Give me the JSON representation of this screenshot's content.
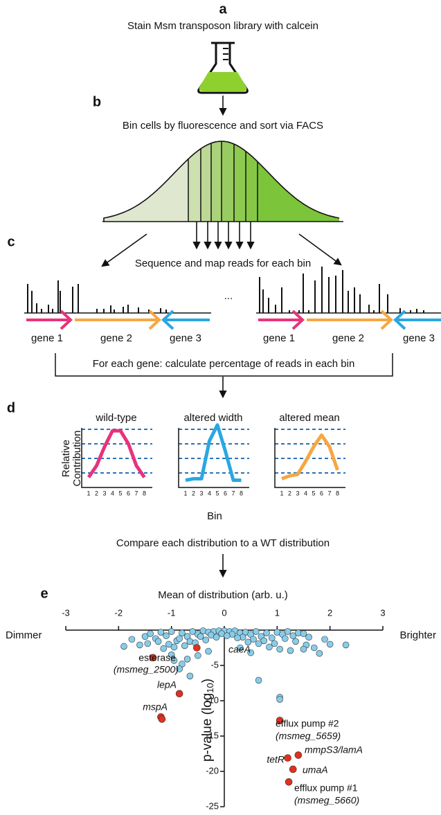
{
  "panels": {
    "a": {
      "label": "a",
      "caption": "Stain Msm transposon library with calcein"
    },
    "b": {
      "label": "b",
      "caption": "Bin cells by fluorescence and sort via FACS"
    },
    "c": {
      "label": "c",
      "caption": "Sequence and map reads for each bin",
      "ellipsis": "...",
      "genes_left": [
        "gene 1",
        "gene 2",
        "gene 3"
      ],
      "genes_right": [
        "gene 1",
        "gene 2",
        "gene 3"
      ],
      "step": "For each gene: calculate percentage of reads in each bin"
    },
    "d": {
      "label": "d",
      "y_label_lines": [
        "Relative",
        "Contribution"
      ],
      "x_label": "Bin",
      "bins": [
        1,
        2,
        3,
        4,
        5,
        6,
        7,
        8
      ],
      "charts": [
        {
          "title": "wild-type",
          "color": "#e8327c",
          "values": [
            0.7,
            1.5,
            2.8,
            3.9,
            3.9,
            3.0,
            1.5,
            0.7
          ]
        },
        {
          "title": "altered width",
          "color": "#2aa7e1",
          "values": [
            0.5,
            0.6,
            0.6,
            3.2,
            4.3,
            2.5,
            0.5,
            0.5
          ]
        },
        {
          "title": "altered mean",
          "color": "#f5a742",
          "values": [
            0.6,
            0.8,
            0.9,
            1.8,
            2.8,
            3.6,
            2.8,
            1.2
          ]
        }
      ],
      "caption": "Compare each distribution to a WT distribution"
    },
    "e": {
      "label": "e"
    }
  },
  "chart_data": {
    "type": "scatter",
    "title": "Mean of distribution (arb. u.)",
    "y_label": {
      "text": "p-value (log",
      "sub": "10",
      "end": ")"
    },
    "left_note": "Dimmer",
    "right_note": "Brighter",
    "xlim": [
      -3,
      3
    ],
    "xticks": [
      -3,
      -2,
      -1,
      0,
      1,
      2,
      3
    ],
    "ylim": [
      -25,
      0
    ],
    "yticks": [
      -5,
      -10,
      -15,
      -20,
      -25
    ],
    "series": [
      {
        "color": "#87cdea",
        "x": [
          -1.5,
          -1.4,
          -1.3,
          -1.2,
          -1.1,
          -1.0,
          -0.9,
          -0.8,
          -0.7,
          -0.6,
          -0.5,
          -0.4,
          -0.3,
          -0.2,
          -0.1,
          0,
          0.1,
          0.2,
          0.3,
          0.4,
          0.5,
          0.6,
          0.7,
          0.8,
          0.9,
          1.0,
          1.1,
          1.2,
          1.3,
          1.4,
          1.5,
          1.6,
          -1.45,
          -1.25,
          -1.05,
          -0.85,
          -0.65,
          -0.45,
          -0.25,
          -0.05,
          0.15,
          0.35,
          0.55,
          0.75,
          0.95,
          1.15,
          1.35,
          1.55,
          -1.15,
          -0.95,
          -0.75,
          -0.55,
          -0.35,
          -0.15,
          0.05,
          0.25,
          0.45,
          0.65,
          0.85,
          1.05,
          1.25,
          2.3,
          1.8,
          1.7,
          1.5,
          1.9,
          2.0,
          0.65,
          1.05,
          1.05,
          -0.65,
          -0.8,
          -0.95,
          -0.7,
          -1.0,
          -1.9,
          -1.75,
          -1.6,
          0.5,
          -0.3,
          -0.5,
          -0.85,
          0.3
        ],
        "values": [
          -0.9,
          -0.5,
          -1.2,
          -0.3,
          -0.8,
          -0.2,
          -1.5,
          -0.4,
          -0.9,
          -0.2,
          -0.6,
          -0.1,
          -0.3,
          -0.2,
          -0.1,
          -0.1,
          -0.2,
          -0.1,
          -0.4,
          -0.3,
          -0.6,
          -0.2,
          -0.9,
          -0.4,
          -1.1,
          -0.3,
          -0.6,
          -0.2,
          -0.8,
          -0.4,
          -0.5,
          -1.0,
          -1.9,
          -1.6,
          -2.0,
          -1.2,
          -1.6,
          -0.9,
          -0.7,
          -0.5,
          -0.6,
          -1.0,
          -1.3,
          -1.5,
          -1.9,
          -1.2,
          -1.6,
          -2.1,
          -2.6,
          -2.4,
          -2.2,
          -1.8,
          -1.4,
          -1.0,
          -0.8,
          -1.1,
          -1.7,
          -1.9,
          -2.4,
          -2.7,
          -2.9,
          -2.1,
          -3.3,
          -2.5,
          -2.7,
          -1.3,
          -2.0,
          -7.1,
          -9.5,
          -9.8,
          -6.5,
          -4.8,
          -4.3,
          -4.1,
          -3.5,
          -2.3,
          -1.3,
          -2.1,
          -3.2,
          -3.0,
          -3.6,
          -5.5,
          -2.5
        ]
      },
      {
        "color": "#e0301e",
        "x": [
          -0.52,
          -1.35,
          -0.85,
          -1.2,
          -1.18,
          1.05,
          1.2,
          1.4,
          1.3,
          1.22
        ],
        "values": [
          -2.5,
          -3.9,
          -9.0,
          -12.3,
          -12.6,
          -12.8,
          -18.1,
          -17.7,
          -19.7,
          -21.5
        ]
      }
    ],
    "annotations": [
      "caeA",
      "esterase",
      "(msmeg_2500)",
      "lepA",
      "mspA",
      "efflux pump #2",
      "(msmeg_5659)",
      "mmpS3/lamA",
      "tetR",
      "umaA",
      "efflux pump #1",
      "(msmeg_5660)"
    ]
  }
}
